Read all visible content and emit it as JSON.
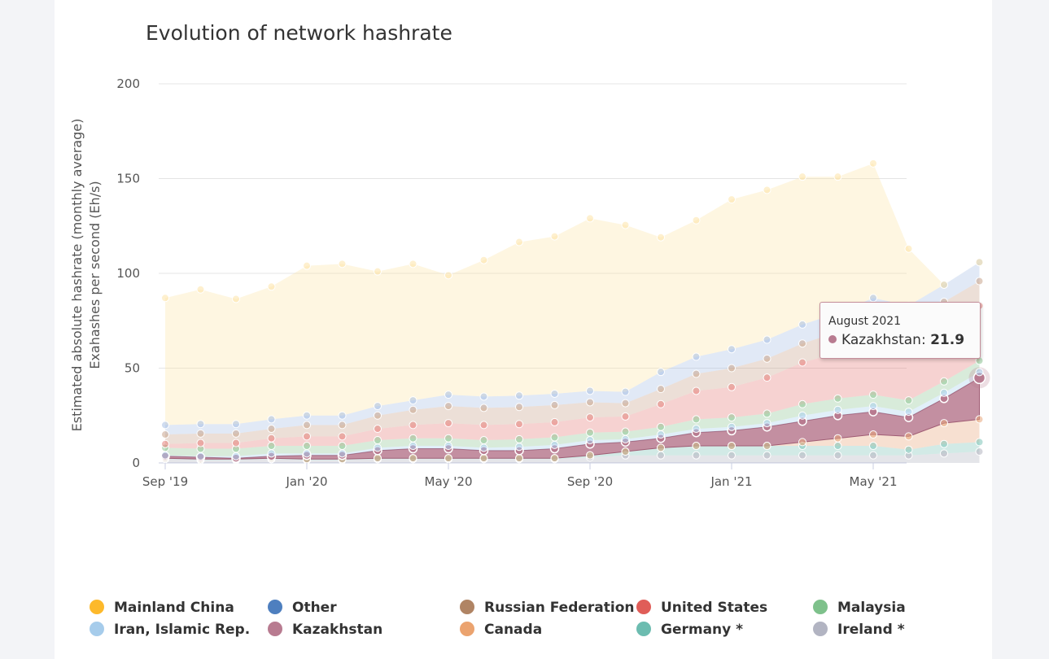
{
  "page": {
    "title": "Evolution of network hashrate"
  },
  "chart_data": {
    "type": "area",
    "stacked": true,
    "title": "Evolution of network hashrate",
    "ylabel_line1": "Estimated absolute hashrate (monthly average)",
    "ylabel_line2": "Exahashes per second (Eh/s)",
    "ylim": [
      0,
      200
    ],
    "yticks": [
      "0",
      "50",
      "100",
      "150",
      "200"
    ],
    "grid": true,
    "legend_placement": "bottom",
    "x": [
      "Sep 2019",
      "Oct 2019",
      "Nov 2019",
      "Dec 2019",
      "Jan 2020",
      "Feb 2020",
      "Mar 2020",
      "Apr 2020",
      "May 2020",
      "Jun 2020",
      "Jul 2020",
      "Aug 2020",
      "Sep 2020",
      "Oct 2020",
      "Nov 2020",
      "Dec 2020",
      "Jan 2021",
      "Feb 2021",
      "Mar 2021",
      "Apr 2021",
      "May 2021",
      "Jun 2021",
      "Jul 2021",
      "Aug 2021"
    ],
    "xtick_labels": [
      {
        "index": 0,
        "label": "Sep '19"
      },
      {
        "index": 4,
        "label": "Jan '20"
      },
      {
        "index": 8,
        "label": "May '20"
      },
      {
        "index": 12,
        "label": "Sep '20"
      },
      {
        "index": 16,
        "label": "Jan '21"
      },
      {
        "index": 20,
        "label": "May '21"
      }
    ],
    "series": [
      {
        "name": "Ireland *",
        "color": "#b3b5c0",
        "values": [
          2,
          1.5,
          1.5,
          2,
          1.5,
          1.5,
          2,
          2,
          2,
          2,
          2,
          2,
          3,
          4,
          4,
          4,
          4,
          4,
          4,
          4,
          4,
          4,
          5,
          6
        ]
      },
      {
        "name": "Germany *",
        "color": "#7ec4b8",
        "values": [
          0.5,
          0.5,
          0.5,
          0.5,
          0.5,
          0.5,
          0.5,
          0.5,
          0.5,
          0.5,
          0.5,
          0.5,
          1,
          2,
          4,
          5,
          5,
          5,
          5,
          5,
          5,
          3,
          5,
          5
        ]
      },
      {
        "name": "Canada",
        "color": "#e8a57a",
        "values": [
          0,
          0,
          0,
          0,
          0,
          0,
          0,
          0,
          0,
          0,
          0,
          0,
          0,
          0,
          0,
          0,
          0,
          0,
          2,
          4,
          6,
          7,
          11,
          12
        ]
      },
      {
        "name": "Kazakhstan",
        "color": "#b87b90",
        "values": [
          1,
          1,
          0.5,
          1,
          2,
          2,
          4,
          5,
          5,
          4,
          4,
          5,
          6,
          5,
          5,
          7,
          8,
          10,
          11,
          12,
          12,
          10,
          13,
          21.9
        ]
      },
      {
        "name": "Iran, Islamic Rep.",
        "color": "#a9d0ef",
        "values": [
          0.5,
          0.5,
          1,
          1.5,
          1,
          1,
          1.5,
          1.5,
          1.5,
          1.5,
          2,
          2,
          2,
          1.5,
          2,
          2,
          2,
          2,
          3,
          3,
          3,
          3,
          3,
          3
        ]
      },
      {
        "name": "Malaysia",
        "color": "#8fc796",
        "values": [
          4,
          4,
          4,
          4,
          4,
          4,
          4,
          4,
          4,
          4,
          4,
          4,
          4,
          4,
          4,
          5,
          5,
          5,
          6,
          6,
          6,
          6,
          6,
          6
        ]
      },
      {
        "name": "United States",
        "color": "#e57f7a",
        "values": [
          2,
          3,
          3,
          4,
          5,
          5,
          6,
          7,
          8,
          8,
          8,
          8,
          8,
          8,
          12,
          15,
          16,
          19,
          22,
          24,
          29,
          28,
          28,
          29
        ]
      },
      {
        "name": "Russian Federation",
        "color": "#c8a48d",
        "values": [
          5,
          5,
          5,
          5,
          6,
          6,
          7,
          8,
          9,
          9,
          9,
          9,
          8,
          7,
          8,
          9,
          10,
          10,
          10,
          11,
          12,
          12,
          14,
          13
        ]
      },
      {
        "name": "Other",
        "color": "#a8c0e4",
        "values": [
          5,
          5,
          5,
          5,
          5,
          5,
          5,
          5,
          6,
          6,
          6,
          6,
          6,
          6,
          9,
          9,
          10,
          10,
          10,
          10,
          10,
          10,
          9,
          10
        ]
      },
      {
        "name": "Mainland China",
        "color": "#fde4a8",
        "values": [
          67,
          71,
          66,
          70,
          79,
          80,
          71,
          72,
          63,
          72,
          81,
          83,
          91,
          88,
          71,
          72,
          79,
          79,
          78,
          72,
          71,
          30,
          0,
          0
        ]
      }
    ],
    "highlight_series": "Kazakhstan",
    "highlight_index": 23,
    "tooltip": {
      "date": "August 2021",
      "series": "Kazakhstan",
      "value": "21.9"
    },
    "legend": [
      {
        "name": "Mainland China",
        "color": "#fdb92b"
      },
      {
        "name": "Other",
        "color": "#4e7fbf"
      },
      {
        "name": "Russian Federation",
        "color": "#b08464"
      },
      {
        "name": "United States",
        "color": "#e05d58"
      },
      {
        "name": "Malaysia",
        "color": "#7ec18b"
      },
      {
        "name": "Iran, Islamic Rep.",
        "color": "#a6cceb"
      },
      {
        "name": "Kazakhstan",
        "color": "#b87b90"
      },
      {
        "name": "Canada",
        "color": "#eba36f"
      },
      {
        "name": "Germany *",
        "color": "#6cbcb0"
      },
      {
        "name": "Ireland *",
        "color": "#b2b4c2"
      }
    ]
  }
}
